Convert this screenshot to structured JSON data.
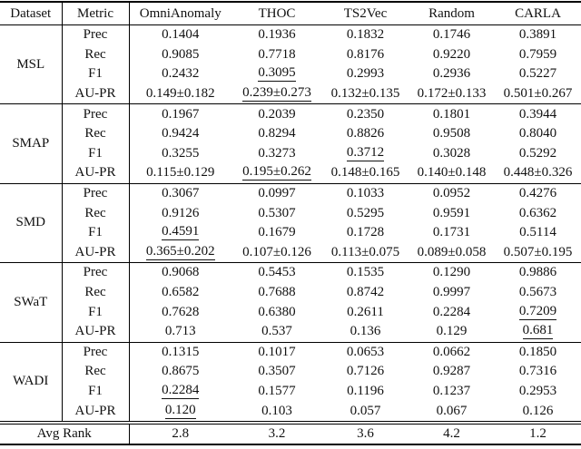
{
  "table": {
    "columns": [
      "Dataset",
      "Metric",
      "OmniAnomaly",
      "THOC",
      "TS2Vec",
      "Random",
      "CARLA"
    ],
    "groups": [
      {
        "dataset": "MSL",
        "rows": [
          {
            "metric": "Prec",
            "cells": [
              {
                "t": "0.1404"
              },
              {
                "t": "0.1936"
              },
              {
                "t": "0.1832"
              },
              {
                "t": "0.1746"
              },
              {
                "t": "0.3891"
              }
            ]
          },
          {
            "metric": "Rec",
            "cells": [
              {
                "t": "0.9085"
              },
              {
                "t": "0.7718"
              },
              {
                "t": "0.8176"
              },
              {
                "t": "0.9220"
              },
              {
                "t": "0.7959"
              }
            ]
          },
          {
            "metric": "F1",
            "cells": [
              {
                "t": "0.2432"
              },
              {
                "t": "0.3095",
                "s": "u"
              },
              {
                "t": "0.2993"
              },
              {
                "t": "0.2936"
              },
              {
                "t": "0.5227",
                "s": "b"
              }
            ]
          },
          {
            "metric": "AU-PR",
            "cells": [
              {
                "t": "0.149±0.182"
              },
              {
                "t": "0.239±0.273",
                "s": "u"
              },
              {
                "t": "0.132±0.135"
              },
              {
                "t": "0.172±0.133"
              },
              {
                "t": "0.501±0.267",
                "s": "b"
              }
            ]
          }
        ]
      },
      {
        "dataset": "SMAP",
        "rows": [
          {
            "metric": "Prec",
            "cells": [
              {
                "t": "0.1967"
              },
              {
                "t": "0.2039"
              },
              {
                "t": "0.2350"
              },
              {
                "t": "0.1801"
              },
              {
                "t": "0.3944"
              }
            ]
          },
          {
            "metric": "Rec",
            "cells": [
              {
                "t": "0.9424"
              },
              {
                "t": "0.8294"
              },
              {
                "t": "0.8826"
              },
              {
                "t": "0.9508"
              },
              {
                "t": "0.8040"
              }
            ]
          },
          {
            "metric": "F1",
            "cells": [
              {
                "t": "0.3255"
              },
              {
                "t": "0.3273"
              },
              {
                "t": "0.3712",
                "s": "u"
              },
              {
                "t": "0.3028"
              },
              {
                "t": "0.5292",
                "s": "b"
              }
            ]
          },
          {
            "metric": "AU-PR",
            "cells": [
              {
                "t": "0.115±0.129"
              },
              {
                "t": "0.195±0.262",
                "s": "u"
              },
              {
                "t": "0.148±0.165"
              },
              {
                "t": "0.140±0.148"
              },
              {
                "t": "0.448±0.326",
                "s": "b"
              }
            ]
          }
        ]
      },
      {
        "dataset": "SMD",
        "rows": [
          {
            "metric": "Prec",
            "cells": [
              {
                "t": "0.3067"
              },
              {
                "t": "0.0997"
              },
              {
                "t": "0.1033"
              },
              {
                "t": "0.0952"
              },
              {
                "t": "0.4276"
              }
            ]
          },
          {
            "metric": "Rec",
            "cells": [
              {
                "t": "0.9126"
              },
              {
                "t": "0.5307"
              },
              {
                "t": "0.5295"
              },
              {
                "t": "0.9591"
              },
              {
                "t": "0.6362"
              }
            ]
          },
          {
            "metric": "F1",
            "cells": [
              {
                "t": "0.4591",
                "s": "u"
              },
              {
                "t": "0.1679"
              },
              {
                "t": "0.1728"
              },
              {
                "t": "0.1731"
              },
              {
                "t": "0.5114",
                "s": "b"
              }
            ]
          },
          {
            "metric": "AU-PR",
            "cells": [
              {
                "t": "0.365±0.202",
                "s": "u"
              },
              {
                "t": "0.107±0.126"
              },
              {
                "t": "0.113±0.075"
              },
              {
                "t": "0.089±0.058"
              },
              {
                "t": "0.507±0.195",
                "s": "b"
              }
            ]
          }
        ]
      },
      {
        "dataset": "SWaT",
        "rows": [
          {
            "metric": "Prec",
            "cells": [
              {
                "t": "0.9068"
              },
              {
                "t": "0.5453"
              },
              {
                "t": "0.1535"
              },
              {
                "t": "0.1290"
              },
              {
                "t": "0.9886"
              }
            ]
          },
          {
            "metric": "Rec",
            "cells": [
              {
                "t": "0.6582"
              },
              {
                "t": "0.7688"
              },
              {
                "t": "0.8742"
              },
              {
                "t": "0.9997"
              },
              {
                "t": "0.5673"
              }
            ]
          },
          {
            "metric": "F1",
            "cells": [
              {
                "t": "0.7628",
                "s": "b"
              },
              {
                "t": "0.6380"
              },
              {
                "t": "0.2611"
              },
              {
                "t": "0.2284"
              },
              {
                "t": "0.7209",
                "s": "u"
              }
            ]
          },
          {
            "metric": "AU-PR",
            "cells": [
              {
                "t": "0.713",
                "s": "b"
              },
              {
                "t": "0.537"
              },
              {
                "t": "0.136"
              },
              {
                "t": "0.129"
              },
              {
                "t": "0.681",
                "s": "u"
              }
            ]
          }
        ]
      },
      {
        "dataset": "WADI",
        "rows": [
          {
            "metric": "Prec",
            "cells": [
              {
                "t": "0.1315"
              },
              {
                "t": "0.1017"
              },
              {
                "t": "0.0653"
              },
              {
                "t": "0.0662"
              },
              {
                "t": "0.1850"
              }
            ]
          },
          {
            "metric": "Rec",
            "cells": [
              {
                "t": "0.8675"
              },
              {
                "t": "0.3507"
              },
              {
                "t": "0.7126"
              },
              {
                "t": "0.9287"
              },
              {
                "t": "0.7316"
              }
            ]
          },
          {
            "metric": "F1",
            "cells": [
              {
                "t": "0.2284",
                "s": "u"
              },
              {
                "t": "0.1577"
              },
              {
                "t": "0.1196"
              },
              {
                "t": "0.1237"
              },
              {
                "t": "0.2953",
                "s": "b"
              }
            ]
          },
          {
            "metric": "AU-PR",
            "cells": [
              {
                "t": "0.120",
                "s": "u"
              },
              {
                "t": "0.103"
              },
              {
                "t": "0.057"
              },
              {
                "t": "0.067"
              },
              {
                "t": "0.126",
                "s": "b"
              }
            ]
          }
        ]
      }
    ],
    "footer": {
      "label": "Avg Rank",
      "values": [
        "2.8",
        "3.2",
        "3.6",
        "4.2",
        "1.2"
      ]
    }
  }
}
